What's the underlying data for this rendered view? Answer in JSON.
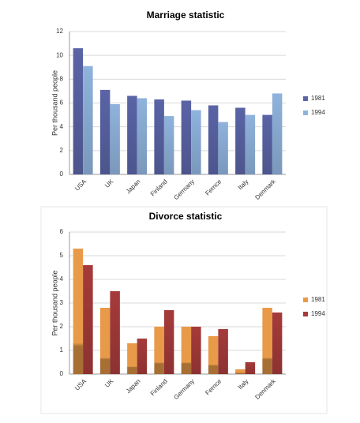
{
  "chart_data": [
    {
      "type": "bar",
      "title": "Marriage statistic",
      "y_label": "Per thousand people",
      "categories": [
        "USA",
        "UK",
        "Japan",
        "Finland",
        "Germany",
        "Fernce",
        "Italy",
        "Denmark"
      ],
      "series": [
        {
          "name": "1981",
          "color": "#5a64a6",
          "values": [
            10.6,
            7.1,
            6.6,
            6.3,
            6.2,
            5.8,
            5.6,
            5.0
          ]
        },
        {
          "name": "1994",
          "color": "#8fb3dc",
          "values": [
            9.1,
            5.9,
            6.4,
            4.9,
            5.4,
            4.4,
            5.0,
            6.8
          ]
        }
      ],
      "ylim": [
        0,
        12
      ],
      "yticks": [
        0,
        2,
        4,
        6,
        8,
        10,
        12
      ],
      "grid": true,
      "legend": "right"
    },
    {
      "type": "bar",
      "title": "Divorce statistic",
      "y_label": "Per thousand people",
      "categories": [
        "USA",
        "UK",
        "Japan",
        "Finland",
        "Germany",
        "Fernce",
        "Italy",
        "Denmark"
      ],
      "series": [
        {
          "name": "1981",
          "color": "#e89a48",
          "values": [
            5.3,
            2.8,
            1.3,
            2.0,
            2.0,
            1.6,
            0.2,
            2.8
          ]
        },
        {
          "name": "1994",
          "color": "#a53b3a",
          "values": [
            4.6,
            3.5,
            1.5,
            2.7,
            2.0,
            1.9,
            0.5,
            2.6
          ]
        }
      ],
      "ylim": [
        0,
        6
      ],
      "yticks": [
        0,
        1,
        2,
        3,
        4,
        5,
        6
      ],
      "grid": true,
      "legend": "right"
    }
  ]
}
